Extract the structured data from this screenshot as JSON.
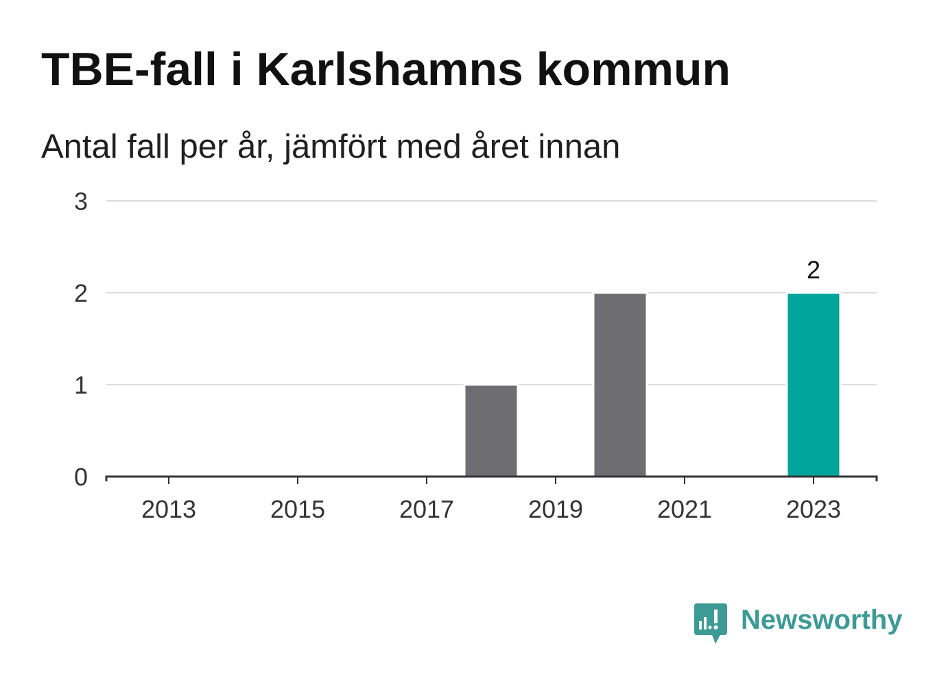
{
  "chart_data": {
    "type": "bar",
    "title": "TBE-fall i Karlshamns kommun",
    "subtitle": "Antal fall per år, jämfört med året innan",
    "xlabel": "",
    "ylabel": "",
    "x": [
      2013,
      2014,
      2015,
      2016,
      2017,
      2018,
      2019,
      2020,
      2021,
      2022,
      2023
    ],
    "values": [
      0,
      0,
      0,
      0,
      0,
      1,
      0,
      2,
      0,
      0,
      2
    ],
    "highlight_x": 2023,
    "ylim": [
      0,
      3
    ],
    "yticks": [
      0,
      1,
      2,
      3
    ],
    "xticks": [
      "2013",
      "2015",
      "2017",
      "2019",
      "2021",
      "2023"
    ],
    "data_labels": [
      {
        "x": 2023,
        "label": "2"
      }
    ],
    "grid": true
  },
  "colors": {
    "bar": "#6e6d72",
    "highlight_bar": "#00a49a",
    "gridline": "#dddddd",
    "axis": "#333333",
    "brand": "#3e9a95"
  },
  "brand": {
    "name": "Newsworthy",
    "icon": "newsworthy-logo-icon"
  }
}
